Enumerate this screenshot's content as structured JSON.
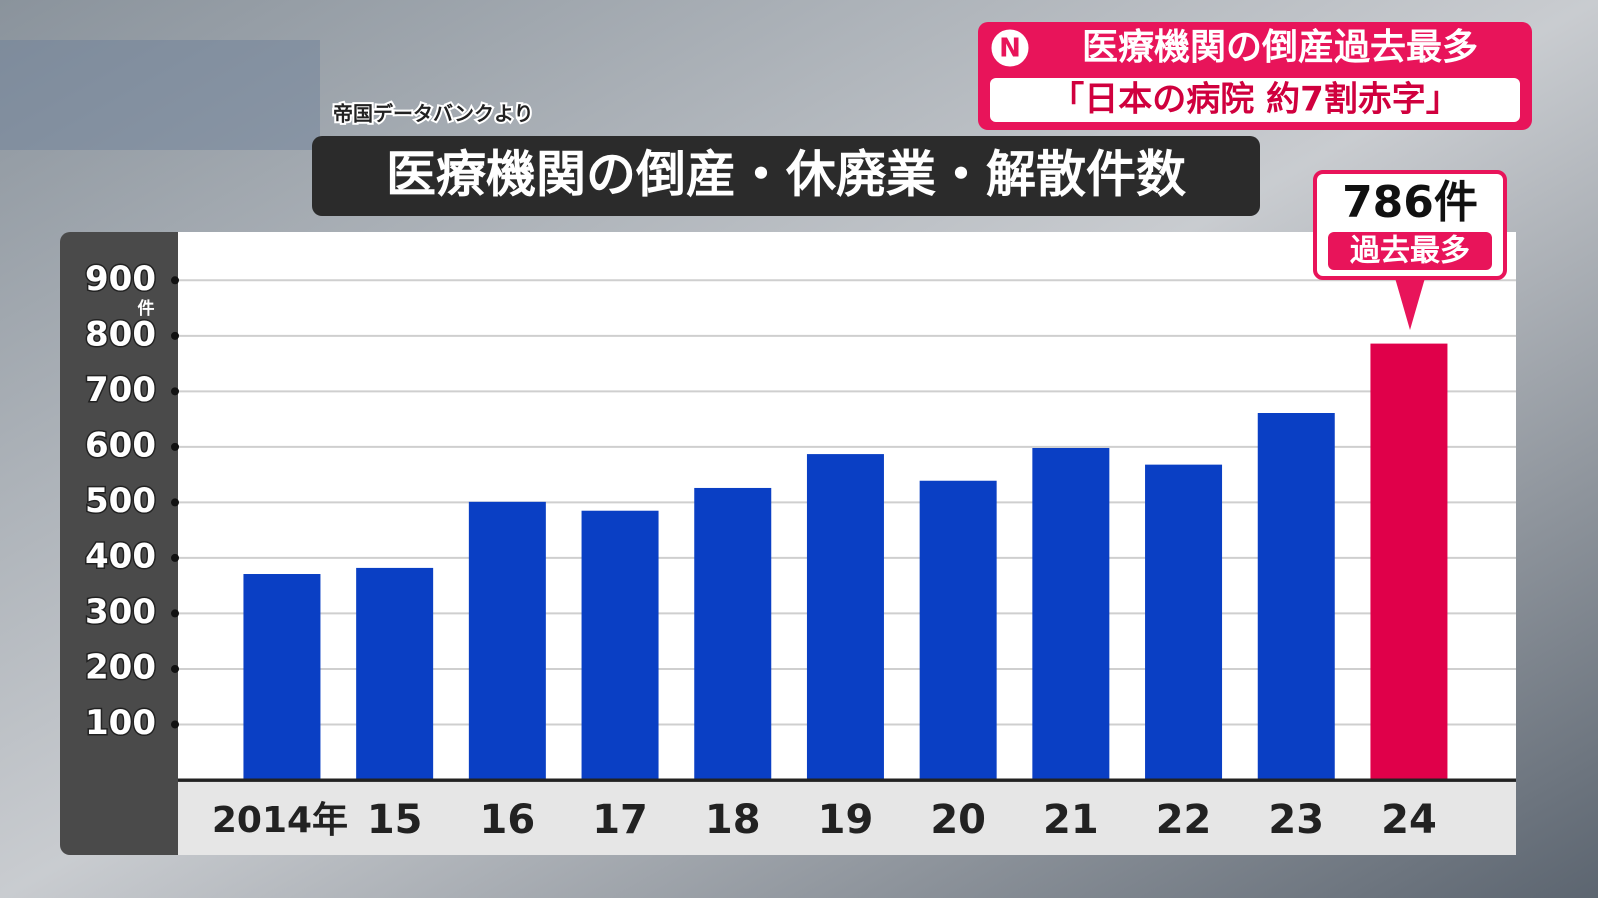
{
  "chart_data": {
    "type": "bar",
    "title": "医療機関の倒産・休廃業・解散件数",
    "source": "帝国データバンクより",
    "headline": "医療機関の倒産過去最多",
    "subheadline": "「日本の病院 約7割赤字」",
    "logo": "N",
    "y_unit": "件",
    "annotation": "過去最多",
    "categories": [
      "2014年",
      "15",
      "16",
      "17",
      "18",
      "19",
      "20",
      "21",
      "22",
      "23",
      "24"
    ],
    "values": [
      371,
      382,
      501,
      485,
      526,
      587,
      539,
      598,
      568,
      661,
      786
    ],
    "value_labels": [
      null,
      null,
      null,
      null,
      null,
      null,
      null,
      null,
      null,
      null,
      "786件"
    ],
    "colors": [
      "#0a3fc4",
      "#0a3fc4",
      "#0a3fc4",
      "#0a3fc4",
      "#0a3fc4",
      "#0a3fc4",
      "#0a3fc4",
      "#0a3fc4",
      "#0a3fc4",
      "#0a3fc4",
      "#e0004a"
    ],
    "ylim": [
      0,
      987
    ],
    "yticks": [
      100,
      200,
      300,
      400,
      500,
      600,
      700,
      800,
      900
    ],
    "grid": true
  }
}
